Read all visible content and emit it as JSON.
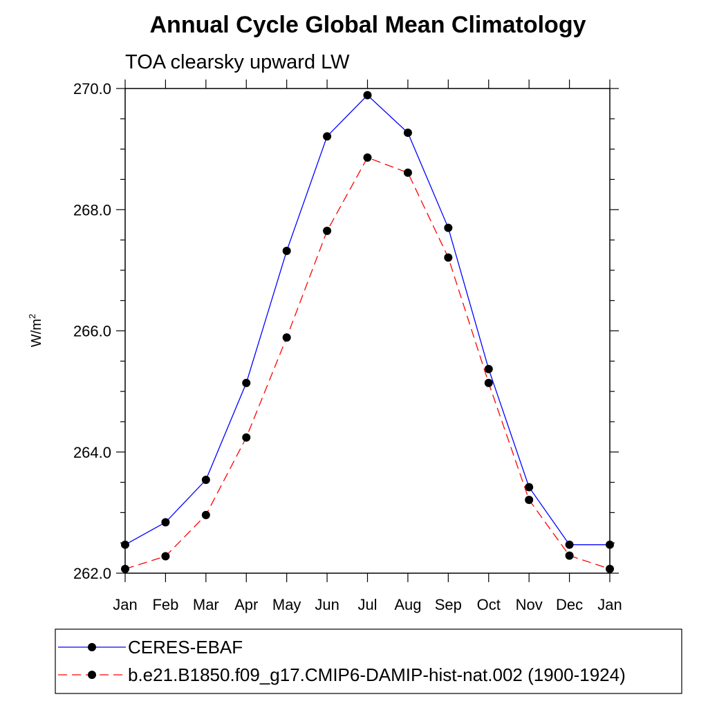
{
  "chart_data": {
    "type": "line",
    "title": "Annual Cycle Global Mean Climatology",
    "subtitle": "TOA clearsky upward LW",
    "ylabel": "W/m",
    "ylabel_sup": "2",
    "xlabel": "",
    "categories": [
      "Jan",
      "Feb",
      "Mar",
      "Apr",
      "May",
      "Jun",
      "Jul",
      "Aug",
      "Sep",
      "Oct",
      "Nov",
      "Dec",
      "Jan"
    ],
    "ylim": [
      262.0,
      270.0
    ],
    "yticks": [
      262.0,
      264.0,
      266.0,
      268.0,
      270.0
    ],
    "ytick_labels": [
      "262.0",
      "264.0",
      "266.0",
      "268.0",
      "270.0"
    ],
    "grid": false,
    "legend_position": "bottom",
    "series": [
      {
        "name": "CERES-EBAF",
        "color": "#0000ff",
        "line_style": "solid",
        "marker": "filled-circle",
        "values": [
          262.47,
          262.84,
          263.54,
          265.14,
          267.32,
          269.21,
          269.89,
          269.27,
          267.7,
          265.37,
          263.42,
          262.47,
          262.47
        ]
      },
      {
        "name": "b.e21.B1850.f09_g17.CMIP6-DAMIP-hist-nat.002 (1900-1924)",
        "color": "#ff0000",
        "line_style": "dashed",
        "marker": "filled-circle",
        "values": [
          262.07,
          262.28,
          262.96,
          264.24,
          265.89,
          267.65,
          268.86,
          268.61,
          267.21,
          265.14,
          263.21,
          262.29,
          262.07
        ]
      }
    ]
  }
}
